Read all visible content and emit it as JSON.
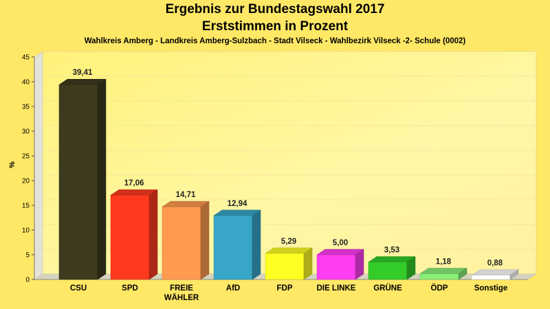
{
  "chart_data": {
    "type": "bar",
    "title": "Ergebnis zur Bundestagswahl 2017",
    "subtitle": "Erststimmen in Prozent",
    "subtitle2": "Wahlkreis Amberg - Landkreis Amberg-Sulzbach - Stadt Vilseck - Wahlbezirk Vilseck -2- Schule (0002)",
    "ylabel": "%",
    "ylim": [
      0,
      45
    ],
    "yticks": [
      0,
      5,
      10,
      15,
      20,
      25,
      30,
      35,
      40,
      45
    ],
    "grid": true,
    "categories": [
      [
        "CSU"
      ],
      [
        "SPD"
      ],
      [
        "FREIE",
        "WÄHLER"
      ],
      [
        "AfD"
      ],
      [
        "FDP"
      ],
      [
        "DIE LINKE"
      ],
      [
        "GRÜNE"
      ],
      [
        "ÖDP"
      ],
      [
        "Sonstige"
      ]
    ],
    "values": [
      39.41,
      17.06,
      14.71,
      12.94,
      5.29,
      5.0,
      3.53,
      1.18,
      0.88
    ],
    "value_labels": [
      "39,41",
      "17,06",
      "14,71",
      "12,94",
      "5,29",
      "5,00",
      "3,53",
      "1,18",
      "0,88"
    ],
    "colors": [
      "#3d3a1d",
      "#ff3a1f",
      "#ff9a4e",
      "#38a6c8",
      "#ffff22",
      "#ff3ef2",
      "#33cc29",
      "#88ee77",
      "#ffffff"
    ]
  }
}
